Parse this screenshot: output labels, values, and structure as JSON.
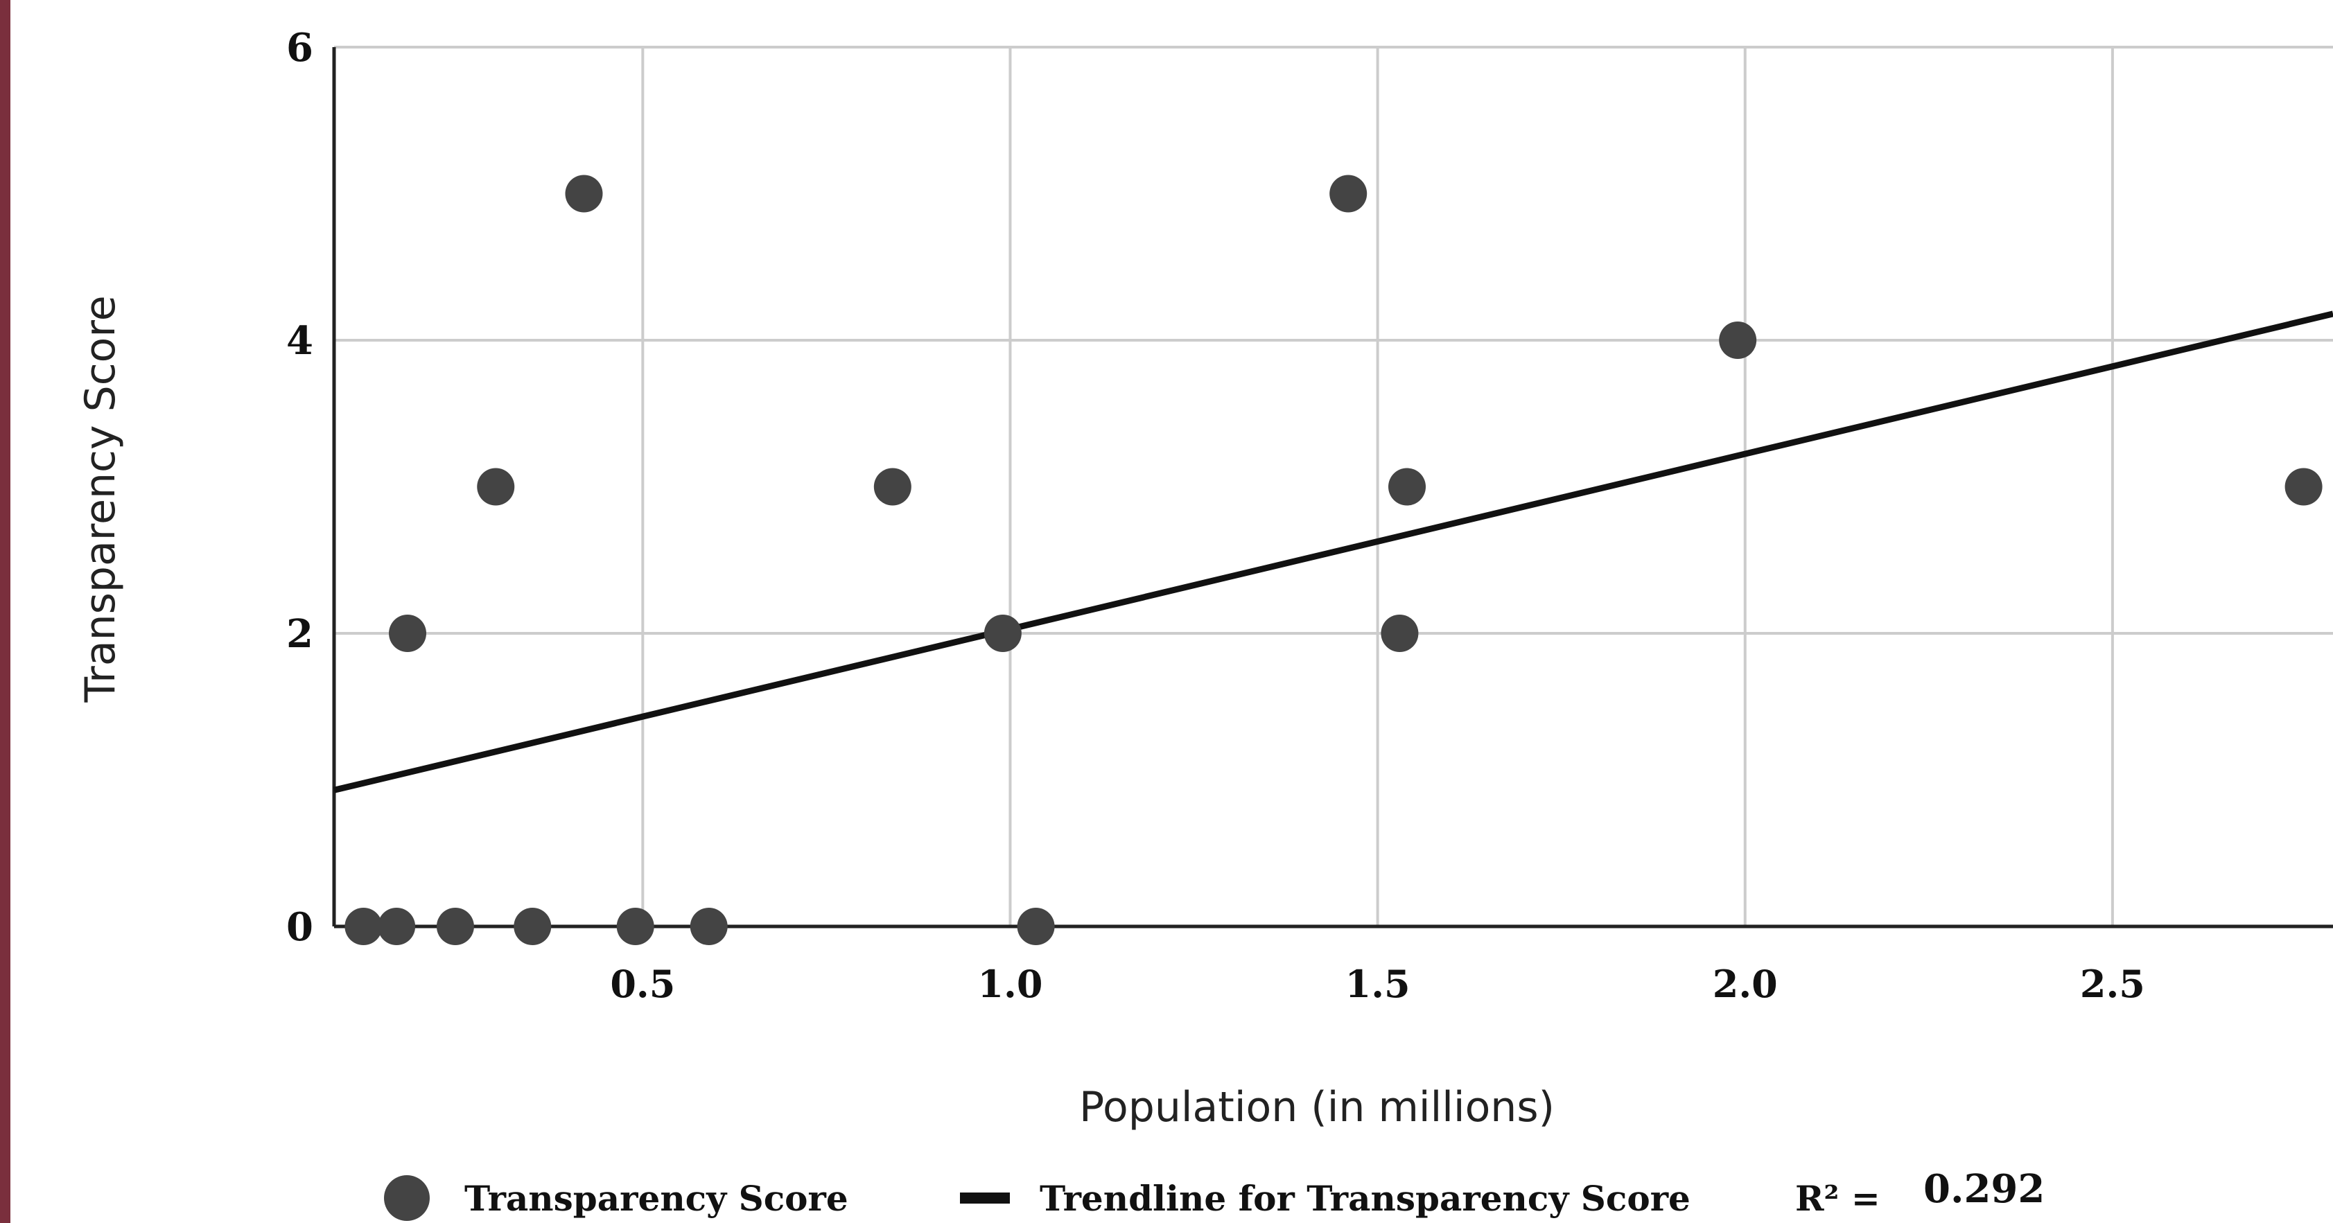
{
  "chart_data": {
    "type": "scatter",
    "xlabel": "Population (in millions)",
    "ylabel": "Transparency Score",
    "xlim": [
      0.08,
      2.8
    ],
    "ylim": [
      0,
      6
    ],
    "x_ticks": [
      "0.5",
      "1.0",
      "1.5",
      "2.0",
      "2.5"
    ],
    "y_ticks": [
      "0",
      "2",
      "4",
      "6"
    ],
    "grid": true,
    "legend_position": "bottom",
    "marker_color": "#444444",
    "series": [
      {
        "name": "Transparency Score",
        "points": [
          {
            "x": 0.12,
            "y": 0
          },
          {
            "x": 0.165,
            "y": 0
          },
          {
            "x": 0.245,
            "y": 0
          },
          {
            "x": 0.35,
            "y": 0
          },
          {
            "x": 0.49,
            "y": 0
          },
          {
            "x": 0.59,
            "y": 0
          },
          {
            "x": 1.035,
            "y": 0
          },
          {
            "x": 0.18,
            "y": 2
          },
          {
            "x": 0.3,
            "y": 3
          },
          {
            "x": 0.42,
            "y": 5
          },
          {
            "x": 0.84,
            "y": 3
          },
          {
            "x": 0.99,
            "y": 2
          },
          {
            "x": 1.46,
            "y": 5
          },
          {
            "x": 1.53,
            "y": 2
          },
          {
            "x": 1.54,
            "y": 3
          },
          {
            "x": 1.99,
            "y": 4
          },
          {
            "x": 2.76,
            "y": 3
          }
        ]
      }
    ],
    "trendline": {
      "name": "Trendline for Transparency Score",
      "start": {
        "x": 0.08,
        "y": 0.93
      },
      "end": {
        "x": 2.8,
        "y": 4.18
      },
      "r2_label": "R² =",
      "r2_value": "0.292"
    }
  }
}
